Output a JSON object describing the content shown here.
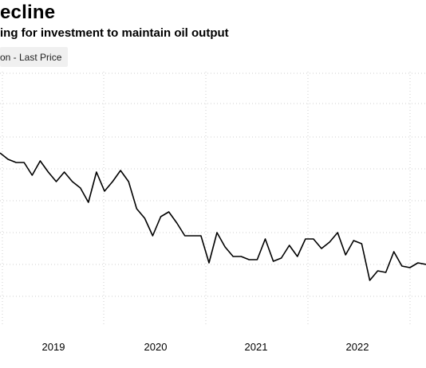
{
  "title": "ecline",
  "subtitle": "ing for investment to maintain oil output",
  "legend_label": "on - Last Price",
  "colors": {
    "line": "#000000",
    "grid": "#cfcfcf",
    "legend_bg": "#f0f0f0"
  },
  "chart_data": {
    "type": "line",
    "title": "ecline",
    "subtitle": "ing for investment to maintain oil output",
    "xlabel": "",
    "ylabel": "",
    "x_tick_labels": [
      "2019",
      "2020",
      "2021",
      "2022"
    ],
    "x_tick_values": [
      2019.0,
      2020.0,
      2021.0,
      2022.0
    ],
    "xlim": [
      2018.48,
      2022.72
    ],
    "ylim": [
      0,
      10
    ],
    "grid": true,
    "legend_position": "top-left",
    "series": [
      {
        "name": "on - Last Price",
        "x": [
          2018.48,
          2018.56,
          2018.64,
          2018.72,
          2018.8,
          2018.88,
          2018.96,
          2019.04,
          2019.12,
          2019.2,
          2019.28,
          2019.36,
          2019.44,
          2019.52,
          2019.6,
          2019.68,
          2019.76,
          2019.84,
          2019.92,
          2020.0,
          2020.08,
          2020.16,
          2020.24,
          2020.32,
          2020.4,
          2020.48,
          2020.56,
          2020.64,
          2020.72,
          2020.8,
          2020.88,
          2020.96,
          2021.04,
          2021.12,
          2021.2,
          2021.28,
          2021.36,
          2021.44,
          2021.52,
          2021.6,
          2021.68,
          2021.76,
          2021.84,
          2021.92,
          2022.0,
          2022.08,
          2022.16,
          2022.24,
          2022.32,
          2022.4,
          2022.48,
          2022.56,
          2022.64,
          2022.72
        ],
        "y": [
          7.0,
          6.6,
          6.4,
          6.4,
          5.6,
          6.5,
          5.8,
          5.2,
          5.8,
          5.2,
          4.8,
          3.9,
          5.8,
          4.6,
          5.2,
          5.9,
          5.2,
          3.5,
          2.9,
          1.8,
          3.0,
          3.3,
          2.6,
          1.8,
          1.8,
          1.8,
          0.1,
          2.0,
          1.1,
          0.5,
          0.5,
          0.3,
          0.3,
          1.6,
          0.2,
          0.4,
          1.2,
          0.5,
          1.6,
          1.6,
          1.0,
          1.4,
          2.0,
          0.6,
          1.5,
          1.3,
          -1.0,
          -0.4,
          -0.5,
          0.8,
          -0.1,
          -0.2,
          0.1,
          0.0
        ]
      }
    ]
  }
}
